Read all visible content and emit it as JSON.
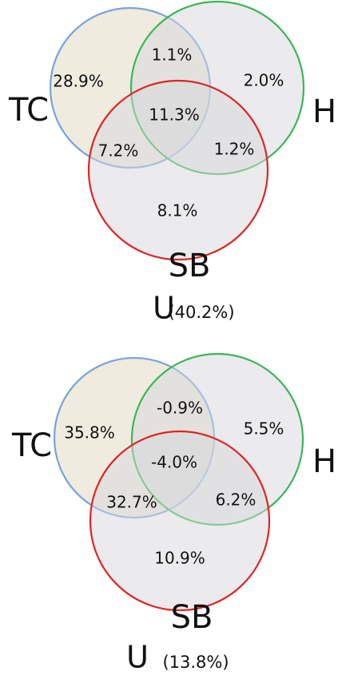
{
  "diagrams": [
    {
      "sets": {
        "tc": "TC",
        "h": "H",
        "sb": "SB"
      },
      "regions": {
        "tc_only": "28.9%",
        "tc_h": "1.1%",
        "h_only": "2.0%",
        "all": "11.3%",
        "tc_sb": "7.2%",
        "h_sb": "1.2%",
        "sb_only": "8.1%"
      },
      "unexplained": {
        "label": "U",
        "value": "(40.2%)"
      }
    },
    {
      "sets": {
        "tc": "TC",
        "h": "H",
        "sb": "SB"
      },
      "regions": {
        "tc_only": "35.8%",
        "tc_h": "-0.9%",
        "h_only": "5.5%",
        "all": "-4.0%",
        "tc_sb": "32.7%",
        "h_sb": "6.2%",
        "sb_only": "10.9%"
      },
      "unexplained": {
        "label": "U",
        "value": "(13.8%)"
      }
    }
  ]
}
